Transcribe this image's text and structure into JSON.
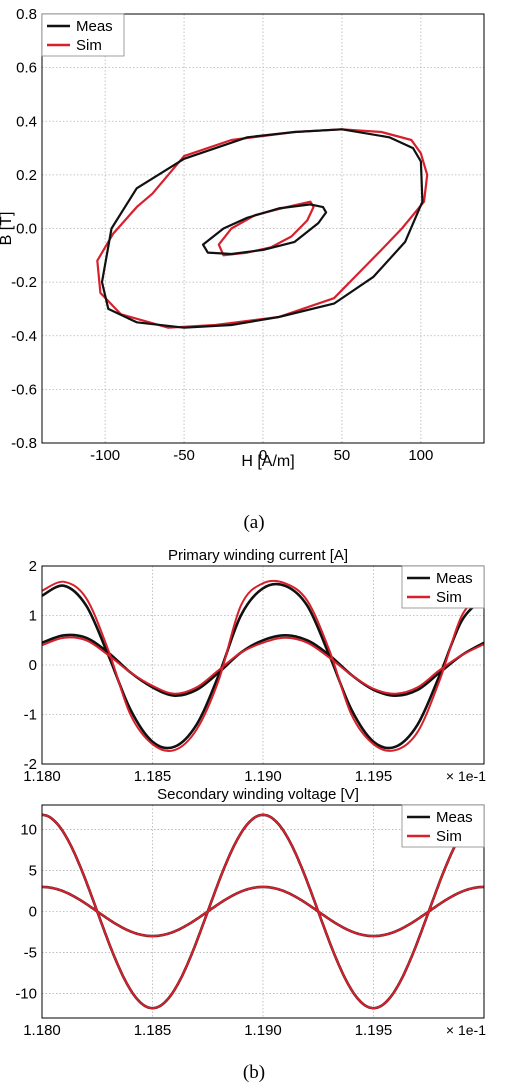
{
  "colors": {
    "meas": "#111111",
    "sim": "#d8202c",
    "grid": "#b4b4b4",
    "axis": "#000000"
  },
  "captions": {
    "a": "(a)",
    "b": "(b)"
  },
  "chart_data": [
    {
      "id": "bh",
      "type": "line",
      "title": "",
      "xlabel": "H [A/m]",
      "ylabel": "B [T]",
      "xlim": [
        -140,
        140
      ],
      "ylim": [
        -0.8,
        0.8
      ],
      "xticks": [
        "-100",
        "-50",
        "0",
        "50",
        "100"
      ],
      "xtick_values": [
        -100,
        -50,
        0,
        50,
        100
      ],
      "yticks": [
        "-0.8",
        "-0.6",
        "-0.4",
        "-0.2",
        "0.0",
        "0.2",
        "0.4",
        "0.6",
        "0.8"
      ],
      "ytick_values": [
        -0.8,
        -0.6,
        -0.4,
        -0.2,
        0.0,
        0.2,
        0.4,
        0.6,
        0.8
      ],
      "grid": true,
      "legend": "top-left",
      "series": [
        {
          "name": "Meas",
          "loops": [
            [
              [
                100,
                0.25
              ],
              [
                95,
                0.3
              ],
              [
                80,
                0.34
              ],
              [
                50,
                0.37
              ],
              [
                20,
                0.36
              ],
              [
                -10,
                0.34
              ],
              [
                -50,
                0.26
              ],
              [
                -80,
                0.15
              ],
              [
                -96,
                0.0
              ],
              [
                -102,
                -0.2
              ],
              [
                -98,
                -0.3
              ],
              [
                -80,
                -0.35
              ],
              [
                -50,
                -0.37
              ],
              [
                -20,
                -0.36
              ],
              [
                10,
                -0.33
              ],
              [
                45,
                -0.28
              ],
              [
                70,
                -0.18
              ],
              [
                90,
                -0.05
              ],
              [
                101,
                0.1
              ],
              [
                100,
                0.25
              ]
            ],
            [
              [
                38,
                0.08
              ],
              [
                30,
                0.09
              ],
              [
                10,
                0.075
              ],
              [
                -10,
                0.04
              ],
              [
                -25,
                0.0
              ],
              [
                -38,
                -0.06
              ],
              [
                -35,
                -0.09
              ],
              [
                -20,
                -0.095
              ],
              [
                0,
                -0.08
              ],
              [
                20,
                -0.05
              ],
              [
                35,
                0.02
              ],
              [
                40,
                0.06
              ],
              [
                38,
                0.08
              ]
            ]
          ]
        },
        {
          "name": "Sim",
          "loops": [
            [
              [
                100,
                0.28
              ],
              [
                94,
                0.33
              ],
              [
                75,
                0.36
              ],
              [
                50,
                0.37
              ],
              [
                20,
                0.36
              ],
              [
                -20,
                0.33
              ],
              [
                -50,
                0.27
              ],
              [
                -70,
                0.13
              ],
              [
                -80,
                0.08
              ],
              [
                -95,
                -0.02
              ],
              [
                -105,
                -0.12
              ],
              [
                -103,
                -0.24
              ],
              [
                -90,
                -0.32
              ],
              [
                -60,
                -0.37
              ],
              [
                -30,
                -0.36
              ],
              [
                10,
                -0.33
              ],
              [
                45,
                -0.26
              ],
              [
                65,
                -0.14
              ],
              [
                75,
                -0.08
              ],
              [
                88,
                0.0
              ],
              [
                102,
                0.1
              ],
              [
                104,
                0.2
              ],
              [
                100,
                0.28
              ]
            ],
            [
              [
                30,
                0.1
              ],
              [
                15,
                0.08
              ],
              [
                -5,
                0.05
              ],
              [
                -20,
                0.0
              ],
              [
                -28,
                -0.06
              ],
              [
                -25,
                -0.1
              ],
              [
                -10,
                -0.09
              ],
              [
                5,
                -0.07
              ],
              [
                18,
                -0.03
              ],
              [
                28,
                0.03
              ],
              [
                32,
                0.08
              ],
              [
                30,
                0.1
              ]
            ]
          ]
        }
      ]
    },
    {
      "id": "current",
      "type": "line",
      "title": "Primary winding current [A]",
      "xlabel": "",
      "ylabel": "",
      "xlim": [
        1.18,
        1.2
      ],
      "ylim": [
        -2,
        2
      ],
      "xticks": [
        "1.180",
        "1.185",
        "1.190",
        "1.195"
      ],
      "xtick_values": [
        1.18,
        1.185,
        1.19,
        1.195
      ],
      "x_multiplier": "× 1e-1",
      "yticks": [
        "2",
        "1",
        "0",
        "-1",
        "-2"
      ],
      "ytick_values": [
        2,
        1,
        0,
        -1,
        -2
      ],
      "grid": true,
      "legend": "top-right",
      "series": [
        {
          "name": "Meas",
          "curves": [
            {
              "x": [
                1.18,
                1.181,
                1.182,
                1.183,
                1.184,
                1.185,
                1.186,
                1.187,
                1.188,
                1.189,
                1.19,
                1.191,
                1.192,
                1.193,
                1.194,
                1.195,
                1.196,
                1.197,
                1.198,
                1.199,
                1.2
              ],
              "y": [
                1.4,
                1.6,
                1.2,
                0.2,
                -0.9,
                -1.55,
                -1.65,
                -1.2,
                -0.2,
                1.0,
                1.55,
                1.6,
                1.2,
                0.2,
                -0.9,
                -1.55,
                -1.65,
                -1.2,
                -0.2,
                0.9,
                1.35
              ]
            },
            {
              "x": [
                1.18,
                1.181,
                1.182,
                1.183,
                1.184,
                1.185,
                1.186,
                1.187,
                1.188,
                1.189,
                1.19,
                1.191,
                1.192,
                1.193,
                1.194,
                1.195,
                1.196,
                1.197,
                1.198,
                1.199,
                1.2
              ],
              "y": [
                0.45,
                0.6,
                0.55,
                0.25,
                -0.15,
                -0.45,
                -0.62,
                -0.5,
                -0.15,
                0.25,
                0.5,
                0.6,
                0.5,
                0.2,
                -0.2,
                -0.5,
                -0.62,
                -0.5,
                -0.15,
                0.2,
                0.45
              ]
            }
          ]
        },
        {
          "name": "Sim",
          "curves": [
            {
              "x": [
                1.18,
                1.181,
                1.182,
                1.183,
                1.184,
                1.185,
                1.186,
                1.187,
                1.188,
                1.189,
                1.19,
                1.191,
                1.192,
                1.193,
                1.194,
                1.195,
                1.196,
                1.197,
                1.198,
                1.199,
                1.2
              ],
              "y": [
                1.5,
                1.68,
                1.35,
                0.3,
                -1.0,
                -1.6,
                -1.72,
                -1.3,
                -0.3,
                1.2,
                1.65,
                1.65,
                1.3,
                0.3,
                -1.0,
                -1.6,
                -1.72,
                -1.35,
                -0.3,
                1.0,
                1.45
              ]
            },
            {
              "x": [
                1.18,
                1.181,
                1.182,
                1.183,
                1.184,
                1.185,
                1.186,
                1.187,
                1.188,
                1.189,
                1.19,
                1.191,
                1.192,
                1.193,
                1.194,
                1.195,
                1.196,
                1.197,
                1.198,
                1.199,
                1.2
              ],
              "y": [
                0.4,
                0.55,
                0.5,
                0.2,
                -0.15,
                -0.42,
                -0.58,
                -0.45,
                -0.1,
                0.25,
                0.45,
                0.55,
                0.45,
                0.15,
                -0.2,
                -0.48,
                -0.58,
                -0.45,
                -0.1,
                0.2,
                0.42
              ]
            }
          ]
        }
      ]
    },
    {
      "id": "voltage",
      "type": "line",
      "title": "Secondary winding voltage [V]",
      "xlabel": "",
      "ylabel": "",
      "xlim": [
        1.18,
        1.2
      ],
      "ylim": [
        -13,
        13
      ],
      "xticks": [
        "1.180",
        "1.185",
        "1.190",
        "1.195"
      ],
      "xtick_values": [
        1.18,
        1.185,
        1.19,
        1.195
      ],
      "x_multiplier": "× 1e-1",
      "yticks": [
        "10",
        "5",
        "0",
        "-5",
        "-10"
      ],
      "ytick_values": [
        10,
        5,
        0,
        -5,
        -10
      ],
      "grid": true,
      "legend": "top-right",
      "series": [
        {
          "name": "Meas",
          "waves": [
            {
              "amplitude": 11.8,
              "period": 0.01,
              "peak_at": 1.18
            },
            {
              "amplitude": 3.0,
              "period": 0.01,
              "peak_at": 1.18
            }
          ]
        },
        {
          "name": "Sim",
          "waves": [
            {
              "amplitude": 11.8,
              "period": 0.01,
              "peak_at": 1.18
            },
            {
              "amplitude": 3.0,
              "period": 0.01,
              "peak_at": 1.18
            }
          ]
        }
      ]
    }
  ]
}
